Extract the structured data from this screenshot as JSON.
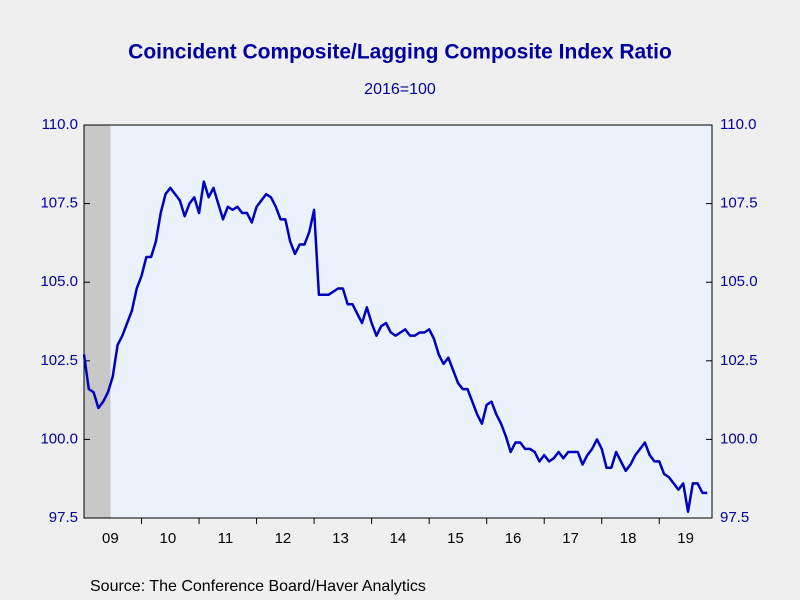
{
  "chart_data": {
    "type": "line",
    "title": "Coincident Composite/Lagging Composite Index Ratio",
    "subtitle": "2016=100",
    "source": "Source:  The Conference Board/Haver Analytics",
    "categories": [
      null,
      null,
      null,
      null,
      null,
      "09",
      null,
      null,
      null,
      null,
      null,
      null,
      null,
      null,
      null,
      null,
      null,
      "10",
      null,
      null,
      null,
      null,
      null,
      null,
      null,
      null,
      null,
      null,
      null,
      "11",
      null,
      null,
      null,
      null,
      null,
      null,
      null,
      null,
      null,
      null,
      null,
      "12",
      null,
      null,
      null,
      null,
      null,
      null,
      null,
      null,
      null,
      null,
      null,
      "13",
      null,
      null,
      null,
      null,
      null,
      null,
      null,
      null,
      null,
      null,
      null,
      "14",
      null,
      null,
      null,
      null,
      null,
      null,
      null,
      null,
      null,
      null,
      null,
      "15",
      null,
      null,
      null,
      null,
      null,
      null,
      null,
      null,
      null,
      null,
      null,
      "16",
      null,
      null,
      null,
      null,
      null,
      null,
      null,
      null,
      null,
      null,
      null,
      "17",
      null,
      null,
      null,
      null,
      null,
      null,
      null,
      null,
      null,
      null,
      null,
      "18",
      null,
      null,
      null,
      null,
      null,
      null,
      null,
      null,
      null,
      null,
      null,
      "19",
      null,
      null,
      null,
      null,
      null
    ],
    "series": [
      {
        "color": "#0000c0",
        "values": [
          102.7,
          101.6,
          101.5,
          101.0,
          101.2,
          101.5,
          102.0,
          103.0,
          103.3,
          103.7,
          104.1,
          104.8,
          105.2,
          105.8,
          105.8,
          106.3,
          107.2,
          107.8,
          108.0,
          107.8,
          107.6,
          107.1,
          107.5,
          107.7,
          107.2,
          108.2,
          107.7,
          108.0,
          107.5,
          107.0,
          107.4,
          107.3,
          107.4,
          107.2,
          107.2,
          106.9,
          107.4,
          107.6,
          107.8,
          107.7,
          107.4,
          107.0,
          107.0,
          106.3,
          105.9,
          106.2,
          106.2,
          106.6,
          107.3,
          104.6,
          104.6,
          104.6,
          104.7,
          104.8,
          104.8,
          104.3,
          104.3,
          104.0,
          103.7,
          104.2,
          103.7,
          103.3,
          103.6,
          103.7,
          103.4,
          103.3,
          103.4,
          103.5,
          103.3,
          103.3,
          103.4,
          103.4,
          103.5,
          103.2,
          102.7,
          102.4,
          102.6,
          102.2,
          101.8,
          101.6,
          101.6,
          101.2,
          100.8,
          100.5,
          101.1,
          101.2,
          100.8,
          100.5,
          100.1,
          99.6,
          99.9,
          99.9,
          99.7,
          99.7,
          99.6,
          99.3,
          99.5,
          99.3,
          99.4,
          99.6,
          99.4,
          99.6,
          99.6,
          99.6,
          99.2,
          99.5,
          99.7,
          100.0,
          99.7,
          99.1,
          99.1,
          99.6,
          99.3,
          99.0,
          99.2,
          99.5,
          99.7,
          99.9,
          99.5,
          99.3,
          99.3,
          98.9,
          98.8,
          98.6,
          98.4,
          98.6,
          97.7,
          98.6,
          98.6,
          98.3,
          98.3
        ]
      }
    ],
    "ylim": [
      97.5,
      110
    ],
    "yticks": [
      97.5,
      {
        "value": 100,
        "label": "100.0"
      },
      102.5,
      {
        "value": 105,
        "label": "105.0"
      },
      107.5,
      {
        "value": 110,
        "label": "110.0"
      }
    ],
    "y2lim": [
      97.5,
      110
    ],
    "y2ticks": [
      97.5,
      {
        "value": 100,
        "label": "100.0"
      },
      102.5,
      {
        "value": 105,
        "label": "105.0"
      },
      107.5,
      {
        "value": 110,
        "label": "110.0"
      }
    ],
    "grid": false
  }
}
